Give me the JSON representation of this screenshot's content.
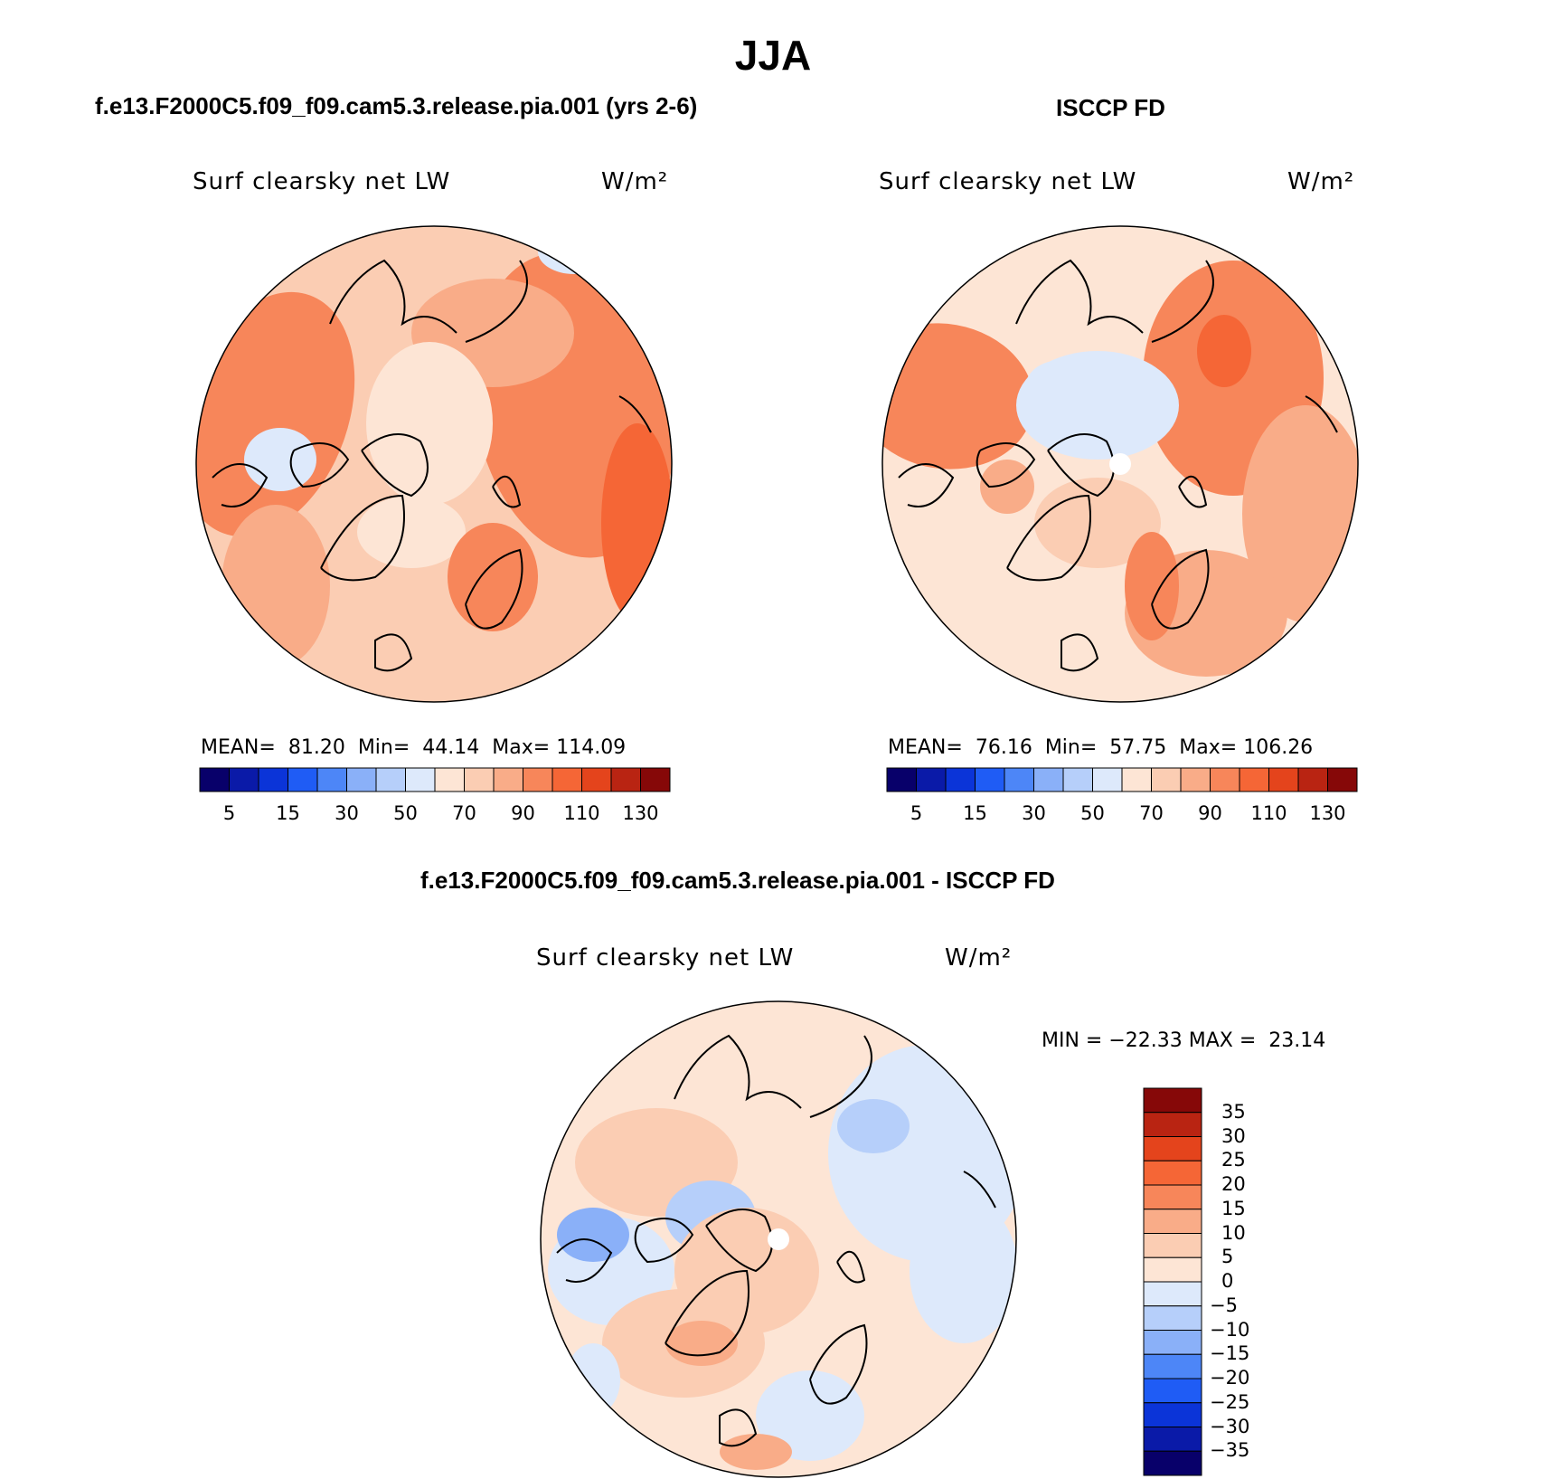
{
  "page": {
    "title": "JJA",
    "left_panel_case": "f.e13.F2000C5.f09_f09.cam5.3.release.pia.001 (yrs 2-6)",
    "right_panel_case": "ISCCP FD",
    "diff_panel_case": "f.e13.F2000C5.f09_f09.cam5.3.release.pia.001 - ISCCP FD"
  },
  "panels": {
    "model": {
      "variable": "Surf clearsky net LW",
      "units": "W/m²",
      "mean_label": "MEAN=",
      "mean": "81.20",
      "min_label": "Min=",
      "min": "44.14",
      "max_label": "Max=",
      "max": "114.09"
    },
    "obs": {
      "variable": "Surf clearsky net LW",
      "units": "W/m²",
      "mean_label": "MEAN=",
      "mean": "76.16",
      "min_label": "Min=",
      "min": "57.75",
      "max_label": "Max=",
      "max": "106.26"
    },
    "diff": {
      "variable": "Surf clearsky net LW",
      "units": "W/m²",
      "minmax_text": "MIN = −22.33 MAX =  23.14"
    }
  },
  "colorbars": {
    "abs_ticks": [
      "5",
      "15",
      "30",
      "50",
      "70",
      "90",
      "110",
      "130"
    ],
    "abs_colors": [
      "#08006a",
      "#0a1aa8",
      "#0b34d8",
      "#1f5cf5",
      "#4d86f7",
      "#8ab0f8",
      "#b6cffa",
      "#dde9fb",
      "#fde5d5",
      "#fbcdb3",
      "#f9ac88",
      "#f7865a",
      "#f56636",
      "#e4441c",
      "#b92412",
      "#860808"
    ],
    "diff_ticks": [
      "35",
      "30",
      "25",
      "20",
      "15",
      "10",
      "5",
      "0",
      "−5",
      "−10",
      "−15",
      "−20",
      "−25",
      "−30",
      "−35"
    ],
    "diff_colors": [
      "#860808",
      "#b92412",
      "#e4441c",
      "#f56636",
      "#f7865a",
      "#f9ac88",
      "#fbcdb3",
      "#fde5d5",
      "#dde9fb",
      "#b6cffa",
      "#8ab0f8",
      "#4d86f7",
      "#1f5cf5",
      "#0b34d8",
      "#0a1aa8",
      "#08006a"
    ]
  },
  "chart_data": [
    {
      "type": "heatmap",
      "title": "Surf clearsky net LW",
      "subtitle": "f.e13.F2000C5.f09_f09.cam5.3.release.pia.001 (yrs 2-6)",
      "units": "W/m²",
      "projection": "north polar stereographic",
      "mean": 81.2,
      "min": 44.14,
      "max": 114.09,
      "levels": [
        5,
        10,
        15,
        20,
        30,
        40,
        50,
        60,
        70,
        80,
        90,
        100,
        110,
        120,
        130
      ]
    },
    {
      "type": "heatmap",
      "title": "Surf clearsky net LW",
      "subtitle": "ISCCP FD",
      "units": "W/m²",
      "projection": "north polar stereographic",
      "mean": 76.16,
      "min": 57.75,
      "max": 106.26,
      "levels": [
        5,
        10,
        15,
        20,
        30,
        40,
        50,
        60,
        70,
        80,
        90,
        100,
        110,
        120,
        130
      ]
    },
    {
      "type": "heatmap",
      "title": "Surf clearsky net LW",
      "subtitle": "f.e13.F2000C5.f09_f09.cam5.3.release.pia.001 - ISCCP FD",
      "units": "W/m²",
      "projection": "north polar stereographic",
      "min": -22.33,
      "max": 23.14,
      "levels": [
        -35,
        -30,
        -25,
        -20,
        -15,
        -10,
        -5,
        0,
        5,
        10,
        15,
        20,
        25,
        30,
        35
      ]
    }
  ]
}
